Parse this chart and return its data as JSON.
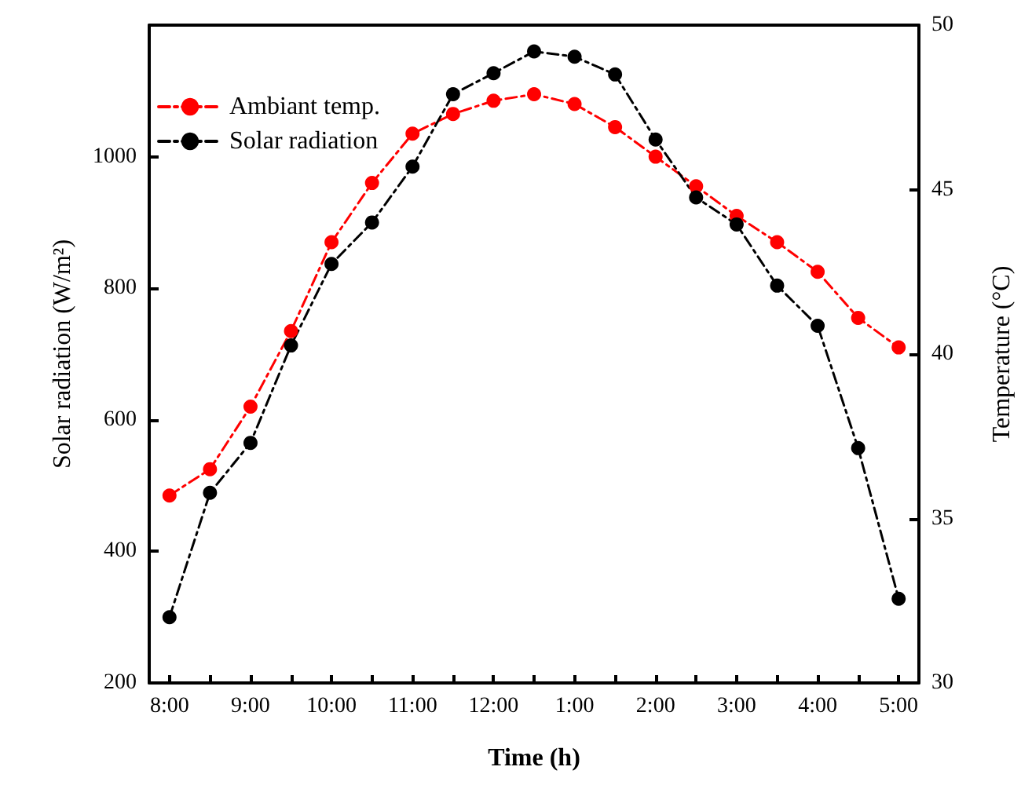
{
  "chart_data": {
    "type": "line",
    "xlabel": "Time (h)",
    "ylabel": "Solar radiation (W/m²)",
    "y2label": "Temperature (°C)",
    "categories": [
      "8:00",
      null,
      "9:00",
      null,
      "10:00",
      null,
      "11:00",
      null,
      "12:00",
      null,
      "1:00",
      null,
      "2:00",
      null,
      "3:00",
      null,
      "4:00",
      null,
      "5:00"
    ],
    "series": [
      {
        "name": "Ambiant temp.",
        "color": "#ff0000",
        "axis": "y2",
        "values": [
          35.7,
          36.5,
          38.4,
          40.7,
          43.4,
          45.2,
          46.7,
          47.3,
          47.7,
          47.9,
          47.6,
          46.9,
          46.0,
          45.1,
          44.2,
          43.4,
          42.5,
          41.1,
          40.2
        ]
      },
      {
        "name": "Solar radiation",
        "color": "#000000",
        "values": [
          300,
          489,
          565,
          713,
          837,
          900,
          985,
          1095,
          1127,
          1160,
          1152,
          1125,
          1026,
          938,
          897,
          804,
          743,
          557,
          328
        ]
      }
    ],
    "ylim": [
      200,
      1200
    ],
    "yticks": [
      200,
      400,
      600,
      800,
      1000
    ],
    "y2lim": [
      30,
      50
    ],
    "y2ticks": [
      30,
      35,
      40,
      45,
      50
    ],
    "legend": "top left",
    "marker": "circle",
    "line_style": "dashed",
    "grid": false
  }
}
